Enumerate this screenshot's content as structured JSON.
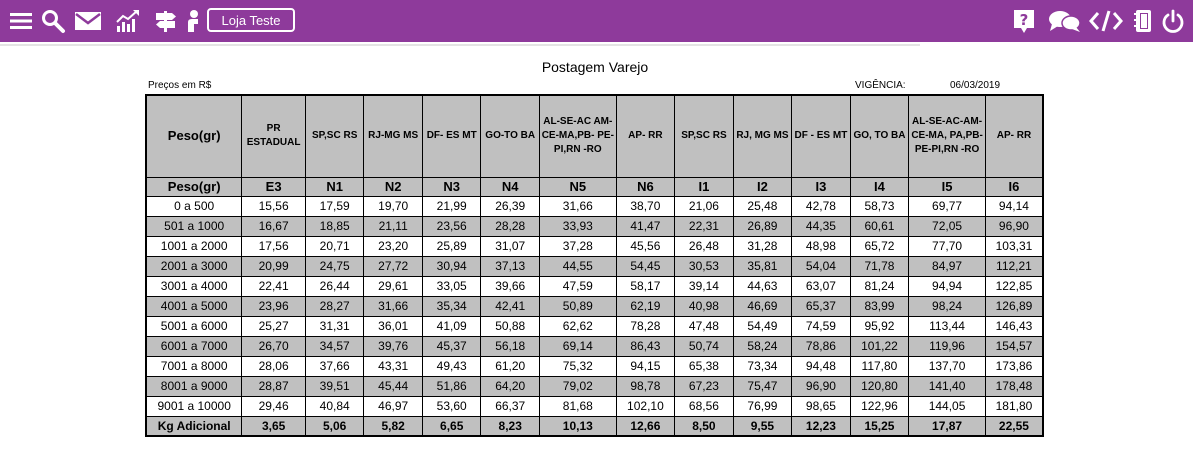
{
  "toolbar": {
    "left_icons": [
      "menu-icon",
      "search-icon",
      "mail-icon",
      "chart-icon",
      "signpost-icon",
      "user-board-icon"
    ],
    "store_button_label": "Loja Teste",
    "right_icons": [
      "help-icon",
      "chat-icon",
      "code-icon",
      "notebook-icon",
      "power-icon"
    ],
    "bar_color": "#8e3a9b"
  },
  "document": {
    "title": "Postagem Varejo",
    "prices_label": "Preços em R$",
    "validity_label": "VIGÊNCIA:",
    "validity_date": "06/03/2019"
  },
  "table": {
    "header_top": [
      "Peso(gr)",
      "PR ESTADUAL",
      "SP,SC RS",
      "RJ-MG MS",
      "DF- ES MT",
      "GO-TO BA",
      "AL-SE-AC AM-CE-MA,PB- PE-PI,RN -RO",
      "AP- RR",
      "SP,SC RS",
      "RJ, MG MS",
      "DF - ES MT",
      "GO, TO BA",
      "AL-SE-AC-AM-CE-MA, PA,PB- PE-PI,RN -RO",
      "AP- RR"
    ],
    "header_codes": [
      "Peso(gr)",
      "E3",
      "N1",
      "N2",
      "N3",
      "N4",
      "N5",
      "N6",
      "I1",
      "I2",
      "I3",
      "I4",
      "I5",
      "I6"
    ],
    "rows": [
      {
        "range": "0 a 500",
        "values": [
          "15,56",
          "17,59",
          "19,70",
          "21,99",
          "26,39",
          "31,66",
          "38,70",
          "21,06",
          "25,48",
          "42,78",
          "58,73",
          "69,77",
          "94,14"
        ]
      },
      {
        "range": "501 a 1000",
        "values": [
          "16,67",
          "18,85",
          "21,11",
          "23,56",
          "28,28",
          "33,93",
          "41,47",
          "22,31",
          "26,89",
          "44,35",
          "60,61",
          "72,05",
          "96,90"
        ]
      },
      {
        "range": "1001 a 2000",
        "values": [
          "17,56",
          "20,71",
          "23,20",
          "25,89",
          "31,07",
          "37,28",
          "45,56",
          "26,48",
          "31,28",
          "48,98",
          "65,72",
          "77,70",
          "103,31"
        ]
      },
      {
        "range": "2001 a 3000",
        "values": [
          "20,99",
          "24,75",
          "27,72",
          "30,94",
          "37,13",
          "44,55",
          "54,45",
          "30,53",
          "35,81",
          "54,04",
          "71,78",
          "84,97",
          "112,21"
        ]
      },
      {
        "range": "3001 a 4000",
        "values": [
          "22,41",
          "26,44",
          "29,61",
          "33,05",
          "39,66",
          "47,59",
          "58,17",
          "39,14",
          "44,63",
          "63,07",
          "81,24",
          "94,94",
          "122,85"
        ]
      },
      {
        "range": "4001 a 5000",
        "values": [
          "23,96",
          "28,27",
          "31,66",
          "35,34",
          "42,41",
          "50,89",
          "62,19",
          "40,98",
          "46,69",
          "65,37",
          "83,99",
          "98,24",
          "126,89"
        ]
      },
      {
        "range": "5001 a 6000",
        "values": [
          "25,27",
          "31,31",
          "36,01",
          "41,09",
          "50,88",
          "62,62",
          "78,28",
          "47,48",
          "54,49",
          "74,59",
          "95,92",
          "113,44",
          "146,43"
        ]
      },
      {
        "range": "6001 a 7000",
        "values": [
          "26,70",
          "34,57",
          "39,76",
          "45,37",
          "56,18",
          "69,14",
          "86,43",
          "50,74",
          "58,24",
          "78,86",
          "101,22",
          "119,96",
          "154,57"
        ]
      },
      {
        "range": "7001 a 8000",
        "values": [
          "28,06",
          "37,66",
          "43,31",
          "49,43",
          "61,20",
          "75,32",
          "94,15",
          "65,38",
          "73,34",
          "94,48",
          "117,80",
          "137,70",
          "173,86"
        ]
      },
      {
        "range": "8001 a 9000",
        "values": [
          "28,87",
          "39,51",
          "45,44",
          "51,86",
          "64,20",
          "79,02",
          "98,78",
          "67,23",
          "75,47",
          "96,90",
          "120,80",
          "141,40",
          "178,48"
        ]
      },
      {
        "range": "9001 a 10000",
        "values": [
          "29,46",
          "40,84",
          "46,97",
          "53,60",
          "66,37",
          "81,68",
          "102,10",
          "68,56",
          "76,99",
          "98,65",
          "122,96",
          "144,05",
          "181,80"
        ]
      }
    ],
    "footer": {
      "label": "Kg Adicional",
      "values": [
        "3,65",
        "5,06",
        "5,82",
        "6,65",
        "8,23",
        "10,13",
        "12,66",
        "8,50",
        "9,55",
        "12,23",
        "15,25",
        "17,87",
        "22,55"
      ]
    }
  }
}
